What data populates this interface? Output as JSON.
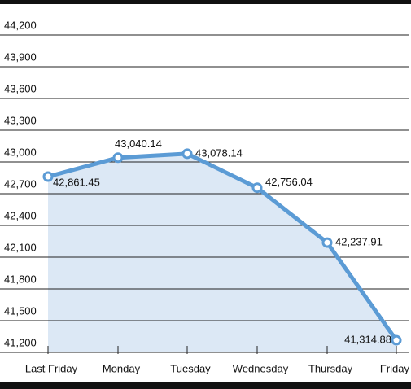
{
  "chart_data": {
    "type": "line",
    "categories": [
      "Last Friday",
      "Monday",
      "Tuesday",
      "Wednesday",
      "Thursday",
      "Friday"
    ],
    "values": [
      42861.45,
      43040.14,
      43078.14,
      42756.04,
      42237.91,
      41314.88
    ],
    "value_labels": [
      "42,861.45",
      "43,040.14",
      "43,078.14",
      "42,756.04",
      "42,237.91",
      "41,314.88"
    ],
    "color": "#5b9bd5",
    "area_color": "#dce8f5",
    "ylim": [
      41200,
      44200
    ],
    "yticks": [
      {
        "value": 41200,
        "label": "41,200"
      },
      {
        "value": 41500,
        "label": "41,500"
      },
      {
        "value": 41800,
        "label": "41,800"
      },
      {
        "value": 42100,
        "label": "42,100"
      },
      {
        "value": 42400,
        "label": "42,400"
      },
      {
        "value": 42700,
        "label": "42,700"
      },
      {
        "value": 43000,
        "label": "43,000"
      },
      {
        "value": 43300,
        "label": "43,300"
      },
      {
        "value": 43600,
        "label": "43,600"
      },
      {
        "value": 43900,
        "label": "43,900"
      },
      {
        "value": 44200,
        "label": "44,200"
      }
    ],
    "grid": true
  }
}
